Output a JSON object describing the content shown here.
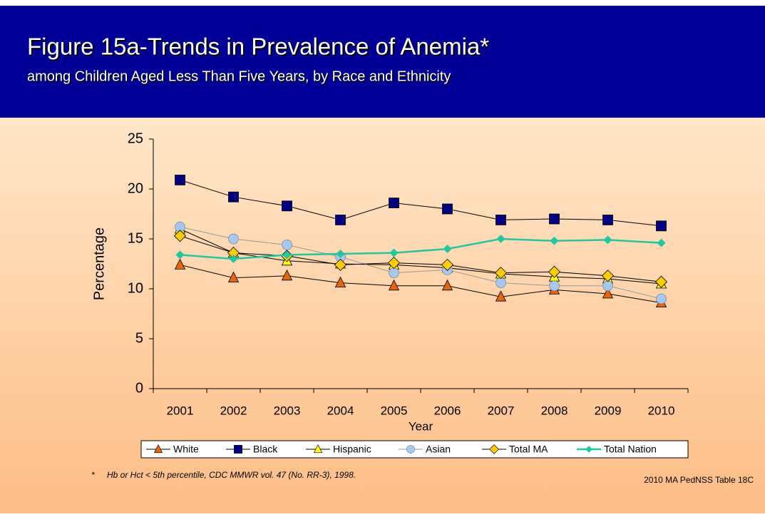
{
  "chart_data": {
    "type": "line",
    "title": "Figure 15a-Trends in Prevalence of Anemia*",
    "subtitle": "among Children Aged Less Than Five Years, by Race and Ethnicity",
    "y_label": "Percentage",
    "x_label": "Year",
    "categories": [
      "2001",
      "2002",
      "2003",
      "2004",
      "2005",
      "2006",
      "2007",
      "2008",
      "2009",
      "2010"
    ],
    "ylim": [
      0,
      25
    ],
    "yticks": [
      0,
      5,
      10,
      15,
      20,
      25
    ],
    "grid": false,
    "legend": "bottom",
    "series": [
      {
        "name": "White",
        "color": "#e8650c",
        "line_color": "#000000",
        "marker": "triangle",
        "values": [
          12.4,
          11.1,
          11.3,
          10.6,
          10.3,
          10.3,
          9.2,
          9.9,
          9.5,
          8.6
        ]
      },
      {
        "name": "Black",
        "color": "#000080",
        "line_color": "#000000",
        "marker": "square",
        "values": [
          20.9,
          19.2,
          18.3,
          16.9,
          18.6,
          18.0,
          16.9,
          17.0,
          16.9,
          16.3
        ]
      },
      {
        "name": "Hispanic",
        "color": "#ffff00",
        "line_color": "#000000",
        "marker": "triangle",
        "values": [
          16.0,
          13.6,
          12.8,
          12.5,
          12.4,
          12.1,
          11.5,
          11.2,
          11.0,
          10.5
        ]
      },
      {
        "name": "Asian",
        "color": "#a6c8ef",
        "line_color": "#9a9a9a",
        "marker": "circle",
        "values": [
          16.2,
          15.0,
          14.4,
          13.2,
          11.6,
          11.9,
          10.6,
          10.3,
          10.3,
          9.0
        ]
      },
      {
        "name": "Total MA",
        "color": "#ffcc00",
        "line_color": "#000000",
        "marker": "diamond",
        "values": [
          15.3,
          13.6,
          13.3,
          12.4,
          12.6,
          12.4,
          11.6,
          11.7,
          11.3,
          10.7
        ]
      },
      {
        "name": "Total Nation",
        "color": "#1ec8a0",
        "line_color": "#1ec8a0",
        "marker": "diamond-small",
        "values": [
          13.4,
          13.0,
          13.4,
          13.5,
          13.6,
          14.0,
          15.0,
          14.8,
          14.9,
          14.6
        ]
      }
    ],
    "footnote": {
      "symbol": "*",
      "text": "Hb or Hct < 5th percentile, CDC MMWR vol. 47 (No. RR-3), 1998."
    },
    "source": "2010 MA PedNSS Table 18C"
  }
}
